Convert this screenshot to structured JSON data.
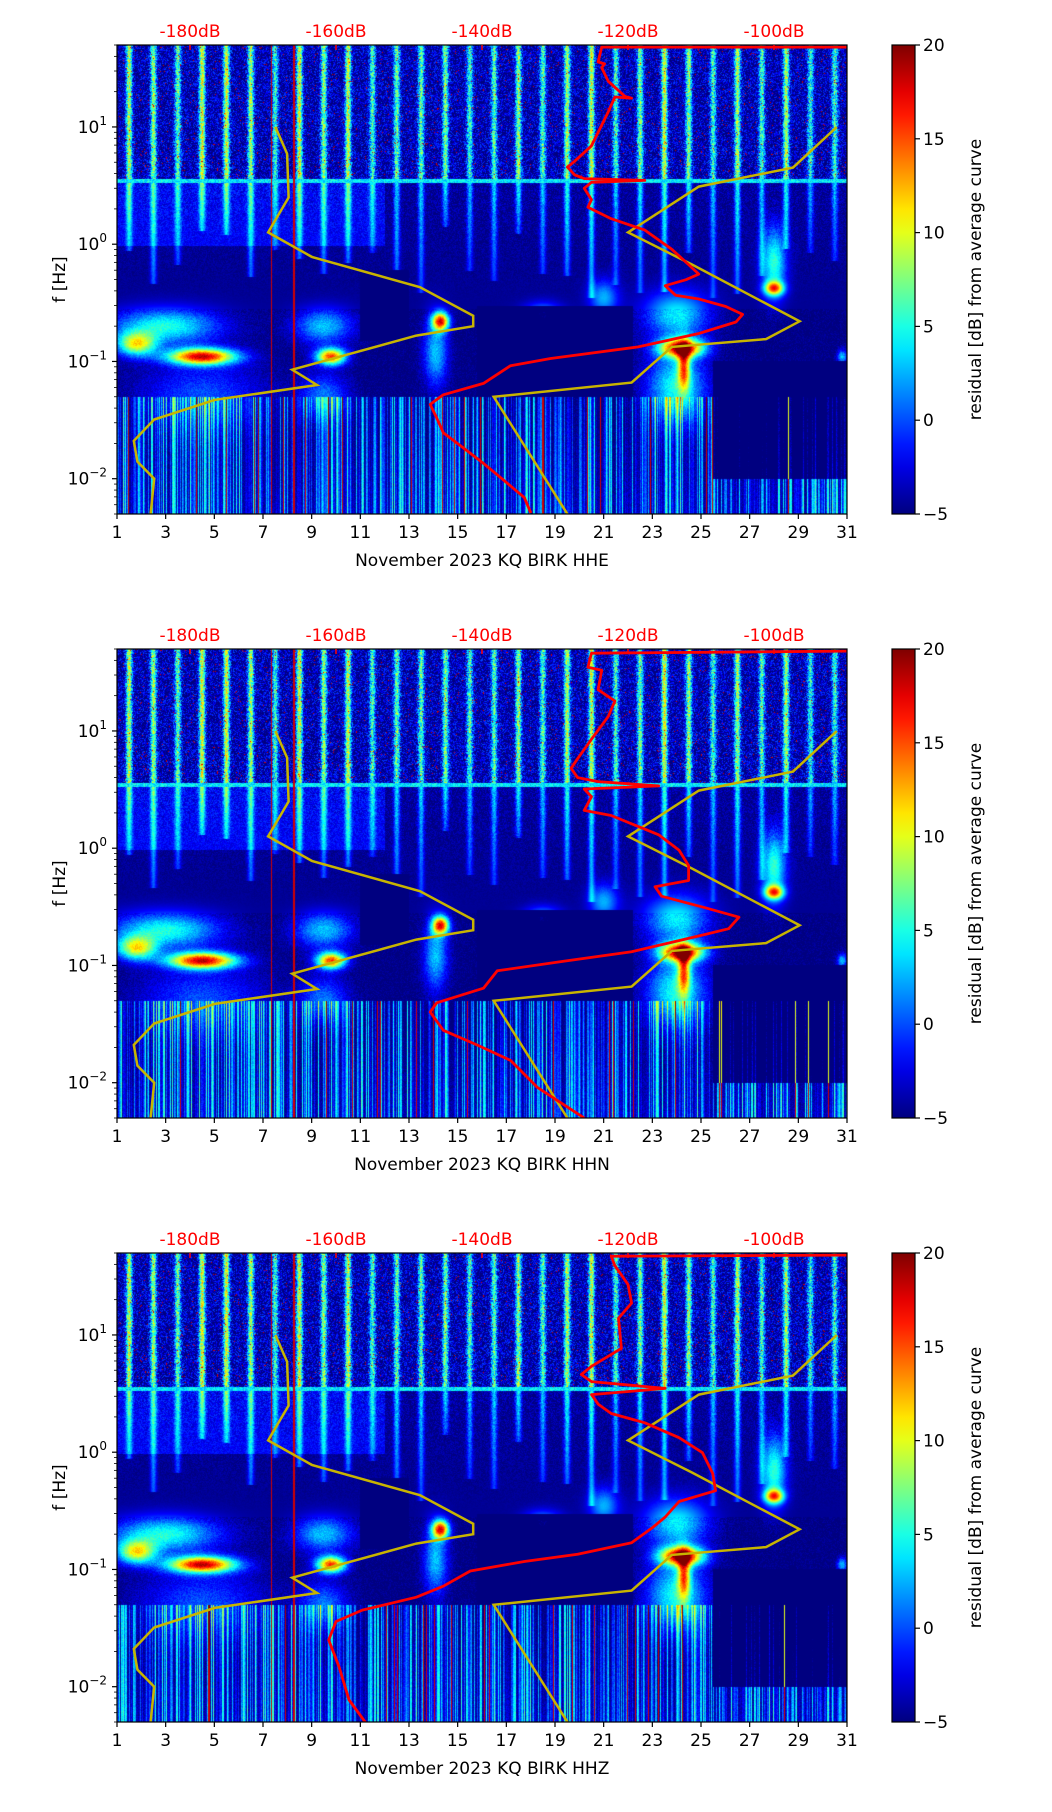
{
  "chart_data": {
    "type": "heatmap",
    "x_axis": {
      "ticks": [
        1,
        3,
        5,
        7,
        9,
        11,
        13,
        15,
        17,
        19,
        21,
        23,
        25,
        27,
        29,
        31
      ],
      "range": [
        1,
        31
      ],
      "unit": "day"
    },
    "y_axis": {
      "label": "f [Hz]",
      "scale": "log",
      "range": [
        0.005,
        50
      ],
      "tick_labels": [
        {
          "base": "10",
          "exp": "−2",
          "value": 0.01
        },
        {
          "base": "10",
          "exp": "−1",
          "value": 0.1
        },
        {
          "base": "10",
          "exp": "0",
          "value": 1
        },
        {
          "base": "10",
          "exp": "1",
          "value": 10
        }
      ]
    },
    "top_axis": {
      "color": "#ff0000",
      "labels": [
        "-180dB",
        "-160dB",
        "-140dB",
        "-120dB",
        "-100dB"
      ],
      "values": [
        -180,
        -160,
        -140,
        -120,
        -100
      ],
      "range_db": [
        -190,
        -90
      ]
    },
    "colorbar": {
      "label": "residual [dB] from average curve",
      "colormap": "jet",
      "range": [
        -5,
        20
      ],
      "ticks": [
        "−5",
        "0",
        "5",
        "10",
        "15",
        "20"
      ],
      "tick_values": [
        -5,
        0,
        5,
        10,
        15,
        20
      ]
    },
    "colors": {
      "psd_curve": "#ff0000",
      "noise_model": "#c8b400",
      "axis": "#000000"
    },
    "noise_models": [
      {
        "name": "low",
        "points_db_hz": [
          [
            -168.3,
            10
          ],
          [
            -166.7,
            5.9
          ],
          [
            -166.5,
            2.5
          ],
          [
            -169.3,
            1.26
          ],
          [
            -163.3,
            0.78
          ],
          [
            -148.5,
            0.43
          ],
          [
            -141.2,
            0.245
          ],
          [
            -141.2,
            0.2
          ],
          [
            -149.0,
            0.166
          ],
          [
            -166.0,
            0.085
          ],
          [
            -162.6,
            0.063
          ],
          [
            -176.6,
            0.047
          ],
          [
            -184.9,
            0.032
          ],
          [
            -187.7,
            0.021
          ],
          [
            -187.2,
            0.014
          ],
          [
            -184.9,
            0.01
          ],
          [
            -185.4,
            0.005
          ]
        ]
      },
      {
        "name": "high",
        "points_db_hz": [
          [
            -91.4,
            10
          ],
          [
            -97.4,
            4.5
          ],
          [
            -110.3,
            3.1
          ],
          [
            -120.0,
            1.26
          ],
          [
            -111.2,
            0.67
          ],
          [
            -96.5,
            0.22
          ],
          [
            -101.1,
            0.155
          ],
          [
            -114.0,
            0.133
          ],
          [
            -119.5,
            0.066
          ],
          [
            -138.4,
            0.05
          ],
          [
            -128.3,
            0.005
          ]
        ]
      }
    ],
    "heatmap_features": {
      "blobs_day_hz_db_dayspread_decadespread": [
        [
          4.5,
          0.11,
          22,
          1.4,
          0.07
        ],
        [
          1.8,
          0.14,
          14,
          0.8,
          0.1
        ],
        [
          3.0,
          0.2,
          10,
          2.2,
          0.15
        ],
        [
          9.8,
          0.11,
          20,
          0.6,
          0.07
        ],
        [
          9.5,
          0.2,
          8,
          1.2,
          0.15
        ],
        [
          14.3,
          0.22,
          20,
          0.35,
          0.08
        ],
        [
          14.1,
          0.12,
          8,
          0.5,
          0.3
        ],
        [
          24.2,
          0.13,
          22,
          0.9,
          0.08
        ],
        [
          24.3,
          0.09,
          14,
          0.25,
          0.2
        ],
        [
          24.0,
          0.06,
          10,
          1.2,
          0.3
        ],
        [
          24.0,
          0.25,
          9,
          1.3,
          0.2
        ],
        [
          28.0,
          0.42,
          16,
          0.4,
          0.06
        ],
        [
          28.0,
          0.7,
          10,
          0.5,
          0.3
        ],
        [
          30.8,
          0.11,
          8,
          0.2,
          0.06
        ],
        [
          18.5,
          0.25,
          8,
          0.8,
          0.1
        ],
        [
          18.5,
          0.13,
          6,
          0.5,
          0.1
        ],
        [
          4.5,
          0.05,
          5,
          2.5,
          0.3
        ],
        [
          9.5,
          0.05,
          6,
          1.0,
          0.2
        ],
        [
          21.0,
          0.35,
          7,
          0.6,
          0.15
        ]
      ],
      "quiet_regions_day_hz": [
        [
          15.8,
          22.2,
          0.05,
          0.3
        ],
        [
          25.5,
          31,
          0.01,
          0.1
        ],
        [
          11,
          13,
          0.15,
          0.6
        ]
      ],
      "spike_days": [
        7.35,
        8.27
      ]
    },
    "panels": [
      {
        "xlabel": "November 2023 KQ BIRK  HHE",
        "psd_curve_db_hz": [
          [
            -90.0,
            48
          ],
          [
            -123.6,
            48
          ],
          [
            -124.1,
            35.8
          ],
          [
            -123.2,
            34.5
          ],
          [
            -123.6,
            32
          ],
          [
            -122.7,
            24.5
          ],
          [
            -120.4,
            18.2
          ],
          [
            -119.5,
            17.6
          ],
          [
            -121.8,
            18.0
          ],
          [
            -122.7,
            13.5
          ],
          [
            -125.0,
            6.9
          ],
          [
            -127.3,
            5.1
          ],
          [
            -128.3,
            4.55
          ],
          [
            -127.3,
            3.9
          ],
          [
            -126.0,
            3.63
          ],
          [
            -117.7,
            3.5
          ],
          [
            -125.0,
            3.37
          ],
          [
            -126.0,
            3.0
          ],
          [
            -125.0,
            2.4
          ],
          [
            -125.5,
            2.07
          ],
          [
            -122.3,
            1.65
          ],
          [
            -117.7,
            1.32
          ],
          [
            -114.0,
            0.905
          ],
          [
            -111.7,
            0.67
          ],
          [
            -110.3,
            0.556
          ],
          [
            -112.1,
            0.497
          ],
          [
            -114.9,
            0.443
          ],
          [
            -113.5,
            0.367
          ],
          [
            -110.3,
            0.341
          ],
          [
            -106.6,
            0.294
          ],
          [
            -104.3,
            0.252
          ],
          [
            -105.2,
            0.217
          ],
          [
            -110.3,
            0.173
          ],
          [
            -118.6,
            0.133
          ],
          [
            -130.6,
            0.106
          ],
          [
            -136.1,
            0.092
          ],
          [
            -139.8,
            0.065
          ],
          [
            -145.3,
            0.052
          ],
          [
            -147.1,
            0.043
          ],
          [
            -146.2,
            0.033
          ],
          [
            -145.3,
            0.0247
          ],
          [
            -142.5,
            0.0182
          ],
          [
            -139.8,
            0.0135
          ],
          [
            -137.9,
            0.0108
          ],
          [
            -134.2,
            0.0069
          ],
          [
            -133.3,
            0.0051
          ]
        ]
      },
      {
        "xlabel": "November 2023 KQ BIRK  HHN",
        "psd_curve_db_hz": [
          [
            -90.0,
            48
          ],
          [
            -125.0,
            46
          ],
          [
            -125.5,
            35
          ],
          [
            -123.6,
            33
          ],
          [
            -124.1,
            22.5
          ],
          [
            -121.8,
            18
          ],
          [
            -122.7,
            13.3
          ],
          [
            -125.0,
            8.5
          ],
          [
            -126.9,
            5.8
          ],
          [
            -127.8,
            4.8
          ],
          [
            -126.9,
            4.0
          ],
          [
            -124.1,
            3.7
          ],
          [
            -115.8,
            3.4
          ],
          [
            -126.0,
            3.2
          ],
          [
            -125.0,
            2.75
          ],
          [
            -126.0,
            2.1
          ],
          [
            -122.3,
            1.9
          ],
          [
            -115.8,
            1.3
          ],
          [
            -113.0,
            0.96
          ],
          [
            -111.7,
            0.71
          ],
          [
            -111.7,
            0.53
          ],
          [
            -116.3,
            0.47
          ],
          [
            -115.4,
            0.39
          ],
          [
            -109.4,
            0.31
          ],
          [
            -104.8,
            0.258
          ],
          [
            -106.2,
            0.206
          ],
          [
            -109.4,
            0.184
          ],
          [
            -119.5,
            0.131
          ],
          [
            -128.7,
            0.109
          ],
          [
            -137.9,
            0.09
          ],
          [
            -139.8,
            0.064
          ],
          [
            -146.2,
            0.048
          ],
          [
            -147.1,
            0.04
          ],
          [
            -145.3,
            0.028
          ],
          [
            -140.7,
            0.021
          ],
          [
            -136.1,
            0.0155
          ],
          [
            -132.4,
            0.0091
          ],
          [
            -126.0,
            0.005
          ]
        ]
      },
      {
        "xlabel": "November 2023 KQ BIRK  HHZ",
        "psd_curve_db_hz": [
          [
            -90.0,
            48
          ],
          [
            -122.3,
            47
          ],
          [
            -121.8,
            39
          ],
          [
            -120.0,
            27
          ],
          [
            -119.5,
            18.7
          ],
          [
            -121.3,
            13.9
          ],
          [
            -120.9,
            7.7
          ],
          [
            -125.0,
            5.4
          ],
          [
            -126.4,
            4.6
          ],
          [
            -125.0,
            4.0
          ],
          [
            -114.9,
            3.5
          ],
          [
            -125.0,
            3.1
          ],
          [
            -124.1,
            2.57
          ],
          [
            -122.3,
            2.14
          ],
          [
            -117.7,
            1.78
          ],
          [
            -113.0,
            1.33
          ],
          [
            -109.8,
            0.99
          ],
          [
            -108.4,
            0.66
          ],
          [
            -108.0,
            0.47
          ],
          [
            -113.0,
            0.38
          ],
          [
            -114.9,
            0.28
          ],
          [
            -116.7,
            0.226
          ],
          [
            -119.5,
            0.169
          ],
          [
            -126.9,
            0.135
          ],
          [
            -134.2,
            0.117
          ],
          [
            -141.6,
            0.097
          ],
          [
            -145.3,
            0.072
          ],
          [
            -149.0,
            0.058
          ],
          [
            -156.4,
            0.045
          ],
          [
            -160.0,
            0.036
          ],
          [
            -161.0,
            0.025
          ],
          [
            -159.6,
            0.0149
          ],
          [
            -158.2,
            0.0077
          ],
          [
            -155.9,
            0.0049
          ]
        ]
      }
    ]
  }
}
